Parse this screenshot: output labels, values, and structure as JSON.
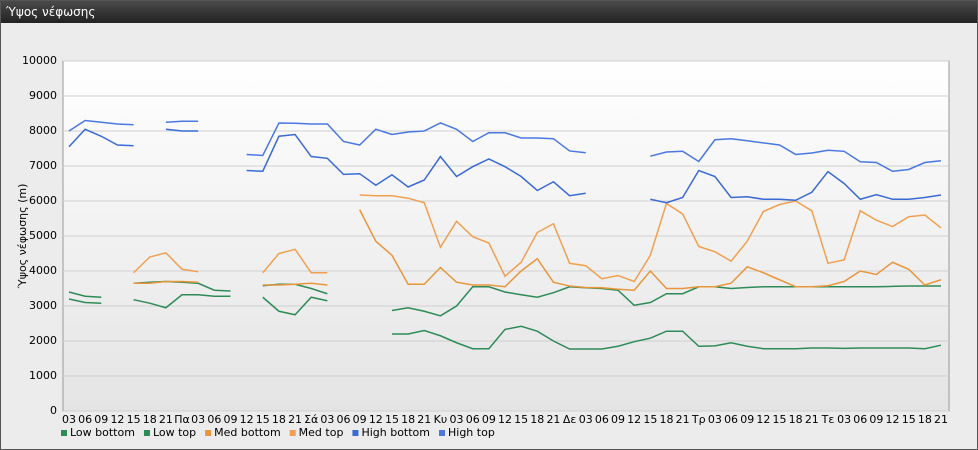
{
  "window_title": "Ύψος νέφωσης",
  "chart_data": {
    "type": "line",
    "y_label": "Ύψος νέφωσης (m)",
    "categories": [
      "03",
      "06",
      "09",
      "12",
      "15",
      "18",
      "21",
      "Πα",
      "03",
      "06",
      "09",
      "12",
      "15",
      "18",
      "21",
      "Σά",
      "03",
      "06",
      "09",
      "12",
      "15",
      "18",
      "21",
      "Κυ",
      "03",
      "06",
      "09",
      "12",
      "15",
      "18",
      "21",
      "Δε",
      "03",
      "06",
      "09",
      "12",
      "15",
      "18",
      "21",
      "Τρ",
      "03",
      "06",
      "09",
      "12",
      "15",
      "18",
      "21",
      "Τε",
      "03",
      "06",
      "09",
      "12",
      "15",
      "18",
      "21"
    ],
    "ylim": [
      0,
      10000
    ],
    "yticks": [
      0,
      1000,
      2000,
      3000,
      4000,
      5000,
      6000,
      7000,
      8000,
      9000,
      10000
    ],
    "grid": true,
    "series": [
      {
        "name": "Low bottom",
        "color": "#2e8b57",
        "values": [
          3200,
          3100,
          3080,
          null,
          3180,
          3080,
          2950,
          3320,
          3320,
          3280,
          3280,
          null,
          3250,
          2850,
          2750,
          3250,
          3150,
          null,
          null,
          null,
          2200,
          2200,
          2300,
          2150,
          1950,
          1780,
          1780,
          2330,
          2420,
          2280,
          2000,
          1770,
          1770,
          1770,
          1850,
          1980,
          2080,
          2280,
          2280,
          1850,
          1860,
          1950,
          1850,
          1780,
          1780,
          1780,
          1800,
          1800,
          1790,
          1800,
          1800,
          1800,
          1800,
          1780,
          1880
        ]
      },
      {
        "name": "Low top",
        "color": "#2e8b57",
        "values": [
          3400,
          3280,
          3250,
          null,
          3650,
          3680,
          3700,
          3680,
          3650,
          3450,
          3430,
          null,
          3580,
          3620,
          3620,
          3500,
          3350,
          null,
          null,
          null,
          2870,
          2950,
          2850,
          2720,
          3000,
          3550,
          3550,
          3400,
          3320,
          3250,
          3380,
          3550,
          3520,
          3500,
          3450,
          3020,
          3100,
          3350,
          3350,
          3550,
          3550,
          3500,
          3530,
          3550,
          3550,
          3550,
          3550,
          3550,
          3550,
          3550,
          3550,
          3560,
          3570,
          3570,
          3570
        ]
      },
      {
        "name": "Med bottom",
        "color": "#e8963c",
        "values": [
          null,
          null,
          null,
          null,
          3650,
          3650,
          3700,
          3700,
          3680,
          null,
          null,
          null,
          3600,
          3600,
          3620,
          3650,
          3600,
          null,
          5750,
          4850,
          4450,
          3620,
          3620,
          4100,
          3680,
          3600,
          3600,
          3550,
          4000,
          4350,
          3680,
          3570,
          3530,
          3520,
          3480,
          3450,
          4000,
          3500,
          3500,
          3550,
          3550,
          3650,
          4120,
          3950,
          3750,
          3550,
          3550,
          3580,
          3700,
          4000,
          3900,
          4250,
          4050,
          3600,
          3750
        ]
      },
      {
        "name": "Med top",
        "color": "#f0a050",
        "values": [
          null,
          null,
          null,
          null,
          3950,
          4400,
          4520,
          4050,
          3980,
          null,
          null,
          null,
          3950,
          4500,
          4620,
          3950,
          3950,
          null,
          6170,
          6150,
          6150,
          6080,
          5950,
          4680,
          5420,
          4980,
          4800,
          3850,
          4250,
          5100,
          5350,
          4220,
          4150,
          3780,
          3870,
          3700,
          4450,
          5930,
          5630,
          4700,
          4550,
          4280,
          4850,
          5700,
          5900,
          6000,
          5720,
          4220,
          4320,
          5720,
          5450,
          5270,
          5550,
          5600,
          5230
        ]
      },
      {
        "name": "High bottom",
        "color": "#3a6ad4",
        "values": [
          7550,
          8050,
          7850,
          7600,
          7580,
          null,
          8050,
          8000,
          8000,
          null,
          null,
          6870,
          6850,
          7850,
          7900,
          7270,
          7220,
          6760,
          6780,
          6450,
          6750,
          6400,
          6600,
          7270,
          6700,
          6980,
          7200,
          6980,
          6700,
          6300,
          6550,
          6150,
          6220,
          null,
          null,
          null,
          6050,
          5950,
          6100,
          6870,
          6700,
          6100,
          6120,
          6050,
          6050,
          6020,
          6250,
          6840,
          6500,
          6050,
          6180,
          6050,
          6050,
          6100,
          6170
        ]
      },
      {
        "name": "High top",
        "color": "#4a78e0",
        "values": [
          8000,
          8300,
          8250,
          8200,
          8180,
          null,
          8250,
          8280,
          8280,
          null,
          null,
          7330,
          7300,
          8230,
          8220,
          8200,
          8200,
          7700,
          7600,
          8050,
          7900,
          7970,
          8000,
          8230,
          8050,
          7700,
          7950,
          7950,
          7800,
          7800,
          7780,
          7430,
          7380,
          null,
          null,
          null,
          7280,
          7400,
          7420,
          7130,
          7750,
          7780,
          7720,
          7660,
          7600,
          7330,
          7370,
          7450,
          7420,
          7120,
          7100,
          6850,
          6900,
          7100,
          7150
        ]
      }
    ]
  }
}
